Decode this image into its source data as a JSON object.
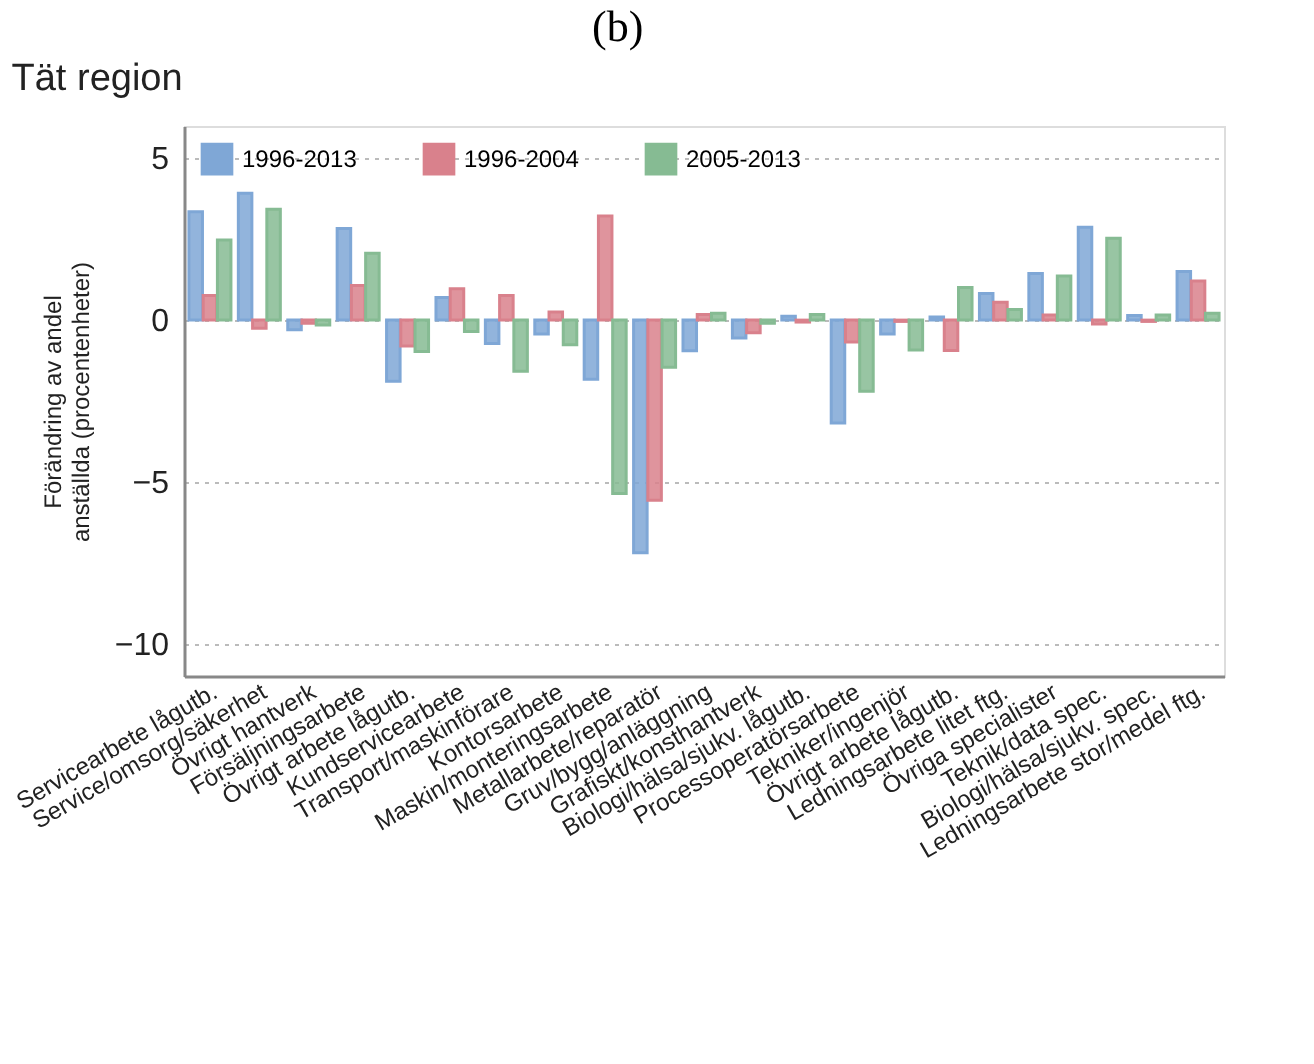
{
  "chart_data": {
    "type": "bar",
    "title": "(b)",
    "subtitle": "Tät region",
    "ylabel": "Förändring av andel\nanställda (procentenheter)",
    "categories": [
      "Servicearbete lågutb.",
      "Service/omsorg/säkerhet",
      "Övrigt hantverk",
      "Försäljningsarbete",
      "Övrigt arbete lågutb.",
      "Kundservicearbete",
      "Transport/maskinförare",
      "Kontorsarbete",
      "Maskin/monteringsarbete",
      "Metallarbete/reparatör",
      "Gruv/bygg/anläggning",
      "Grafiskt/konsthantverk",
      "Biologi/hälsa/sjukv. lågutb.",
      "Processoperatörsarbete",
      "Tekniker/ingenjör",
      "Övrigt arbete lågutb.",
      "Ledningsarbete litet ftg.",
      "Övriga specialister",
      "Teknik/data spec.",
      "Biologi/hälsa/sjukv. spec.",
      "Ledningsarbete stor/medel ftg."
    ],
    "series": [
      {
        "name": "1996-2013",
        "color": "#7fa7d6",
        "values": [
          3.35,
          3.92,
          -0.3,
          2.83,
          -1.89,
          0.7,
          -0.72,
          -0.43,
          -1.83,
          -7.19,
          -0.95,
          -0.55,
          0.12,
          -3.18,
          -0.43,
          0.1,
          0.82,
          1.44,
          2.87,
          0.14,
          1.5
        ]
      },
      {
        "name": "1996-2004",
        "color": "#d9818c",
        "values": [
          0.76,
          -0.25,
          -0.1,
          1.07,
          -0.8,
          0.97,
          0.76,
          0.25,
          3.22,
          -5.57,
          0.17,
          -0.39,
          -0.06,
          -0.68,
          -0.04,
          -0.94,
          0.55,
          0.16,
          -0.12,
          -0.04,
          1.21
        ]
      },
      {
        "name": "2005-2013",
        "color": "#86bb93",
        "values": [
          2.48,
          3.43,
          -0.15,
          2.07,
          -0.97,
          -0.35,
          -1.58,
          -0.76,
          -5.36,
          -1.46,
          0.21,
          -0.1,
          0.17,
          -2.2,
          -0.92,
          1.01,
          0.33,
          1.36,
          2.53,
          0.16,
          0.21
        ]
      }
    ],
    "ylim": [
      -11,
      6
    ],
    "yticks": [
      5,
      0,
      -5,
      -10
    ],
    "grid": "y",
    "legend": "top left"
  }
}
